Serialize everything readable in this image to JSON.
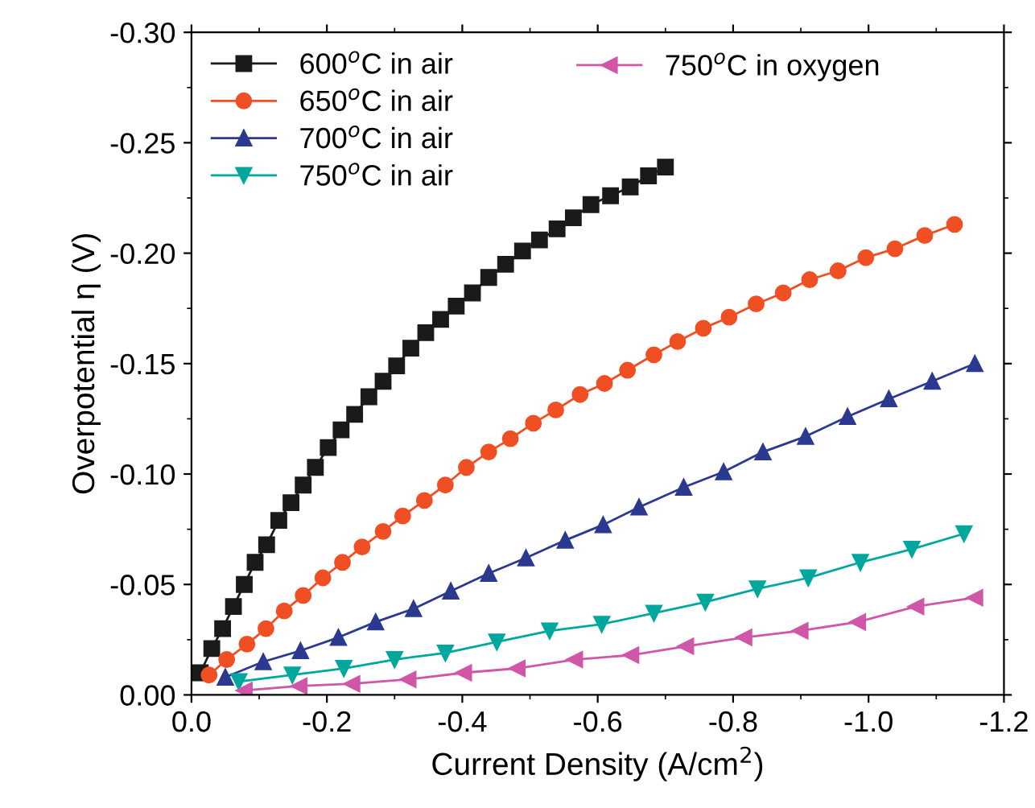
{
  "chart_data": {
    "type": "line",
    "xlabel": "Current Density (A/cm$^{2}$)",
    "ylabel": "Overpotential η (V)",
    "xlim": [
      0,
      -1.2
    ],
    "ylim": [
      0,
      -0.3
    ],
    "xticks": [
      {
        "value": 0,
        "label": "0.0"
      },
      -0.2,
      -0.4,
      -0.6,
      -0.8,
      {
        "value": -1,
        "label": "-1.0"
      },
      -1.2
    ],
    "yticks": [
      {
        "value": 0,
        "label": "0.00"
      },
      {
        "value": -0.05,
        "label": "-0.05"
      },
      {
        "value": -0.1,
        "label": "-0.10"
      },
      {
        "value": -0.15,
        "label": "-0.15"
      },
      {
        "value": -0.2,
        "label": "-0.20"
      },
      {
        "value": -0.25,
        "label": "-0.25"
      },
      {
        "value": -0.3,
        "label": "-0.30"
      }
    ],
    "grid": false,
    "legend": "top left",
    "series": [
      {
        "name": "600$^{o}$C in air",
        "color": "#1a1a1a",
        "marker": "square",
        "x": [
          -0.013,
          -0.03,
          -0.046,
          -0.062,
          -0.078,
          -0.094,
          -0.111,
          -0.129,
          -0.147,
          -0.165,
          -0.183,
          -0.202,
          -0.221,
          -0.241,
          -0.262,
          -0.283,
          -0.303,
          -0.324,
          -0.346,
          -0.368,
          -0.391,
          -0.415,
          -0.439,
          -0.464,
          -0.489,
          -0.514,
          -0.54,
          -0.564,
          -0.59,
          -0.619,
          -0.648,
          -0.675,
          -0.7
        ],
        "values": [
          -0.01,
          -0.021,
          -0.03,
          -0.04,
          -0.05,
          -0.06,
          -0.068,
          -0.079,
          -0.087,
          -0.095,
          -0.103,
          -0.112,
          -0.12,
          -0.127,
          -0.135,
          -0.142,
          -0.149,
          -0.157,
          -0.164,
          -0.17,
          -0.176,
          -0.182,
          -0.189,
          -0.195,
          -0.201,
          -0.206,
          -0.211,
          -0.216,
          -0.222,
          -0.226,
          -0.23,
          -0.235,
          -0.239
        ]
      },
      {
        "name": "650$^{o}$C in air",
        "color": "#f04e23",
        "marker": "circle",
        "x": [
          -0.026,
          -0.052,
          -0.082,
          -0.11,
          -0.137,
          -0.165,
          -0.194,
          -0.223,
          -0.252,
          -0.283,
          -0.312,
          -0.344,
          -0.375,
          -0.406,
          -0.439,
          -0.471,
          -0.505,
          -0.538,
          -0.574,
          -0.61,
          -0.644,
          -0.683,
          -0.718,
          -0.756,
          -0.794,
          -0.834,
          -0.874,
          -0.913,
          -0.955,
          -0.996,
          -1.039,
          -1.083,
          -1.127
        ],
        "values": [
          -0.009,
          -0.016,
          -0.023,
          -0.03,
          -0.038,
          -0.045,
          -0.053,
          -0.06,
          -0.067,
          -0.074,
          -0.081,
          -0.088,
          -0.095,
          -0.103,
          -0.11,
          -0.116,
          -0.123,
          -0.129,
          -0.136,
          -0.141,
          -0.147,
          -0.154,
          -0.16,
          -0.166,
          -0.171,
          -0.177,
          -0.182,
          -0.188,
          -0.192,
          -0.198,
          -0.202,
          -0.208,
          -0.213
        ]
      },
      {
        "name": "700$^{o}$C in air",
        "color": "#2b3990",
        "marker": "triangle",
        "x": [
          -0.05,
          -0.106,
          -0.161,
          -0.217,
          -0.272,
          -0.328,
          -0.383,
          -0.439,
          -0.494,
          -0.552,
          -0.608,
          -0.661,
          -0.727,
          -0.786,
          -0.844,
          -0.907,
          -0.969,
          -1.03,
          -1.094,
          -1.157
        ],
        "values": [
          -0.008,
          -0.015,
          -0.02,
          -0.026,
          -0.033,
          -0.039,
          -0.047,
          -0.055,
          -0.062,
          -0.07,
          -0.077,
          -0.085,
          -0.094,
          -0.101,
          -0.11,
          -0.117,
          -0.126,
          -0.134,
          -0.142,
          -0.15
        ]
      },
      {
        "name": "750$^{o}$C in air",
        "color": "#00a79d",
        "marker": "triangle_down",
        "x": [
          -0.07,
          -0.149,
          -0.225,
          -0.3,
          -0.375,
          -0.451,
          -0.529,
          -0.606,
          -0.683,
          -0.759,
          -0.836,
          -0.911,
          -0.988,
          -1.064,
          -1.141
        ],
        "values": [
          -0.006,
          -0.009,
          -0.012,
          -0.016,
          -0.019,
          -0.024,
          -0.029,
          -0.032,
          -0.037,
          -0.042,
          -0.048,
          -0.053,
          -0.06,
          -0.066,
          -0.073
        ]
      },
      {
        "name": "750$^{o}$C in oxygen",
        "color": "#d056a8",
        "marker": "triangle_left",
        "x": [
          -0.078,
          -0.159,
          -0.237,
          -0.32,
          -0.402,
          -0.481,
          -0.566,
          -0.649,
          -0.73,
          -0.816,
          -0.899,
          -0.984,
          -1.07,
          -1.157
        ],
        "values": [
          -0.002,
          -0.004,
          -0.005,
          -0.007,
          -0.01,
          -0.012,
          -0.016,
          -0.018,
          -0.022,
          -0.026,
          -0.029,
          -0.033,
          -0.04,
          -0.044
        ]
      }
    ]
  }
}
